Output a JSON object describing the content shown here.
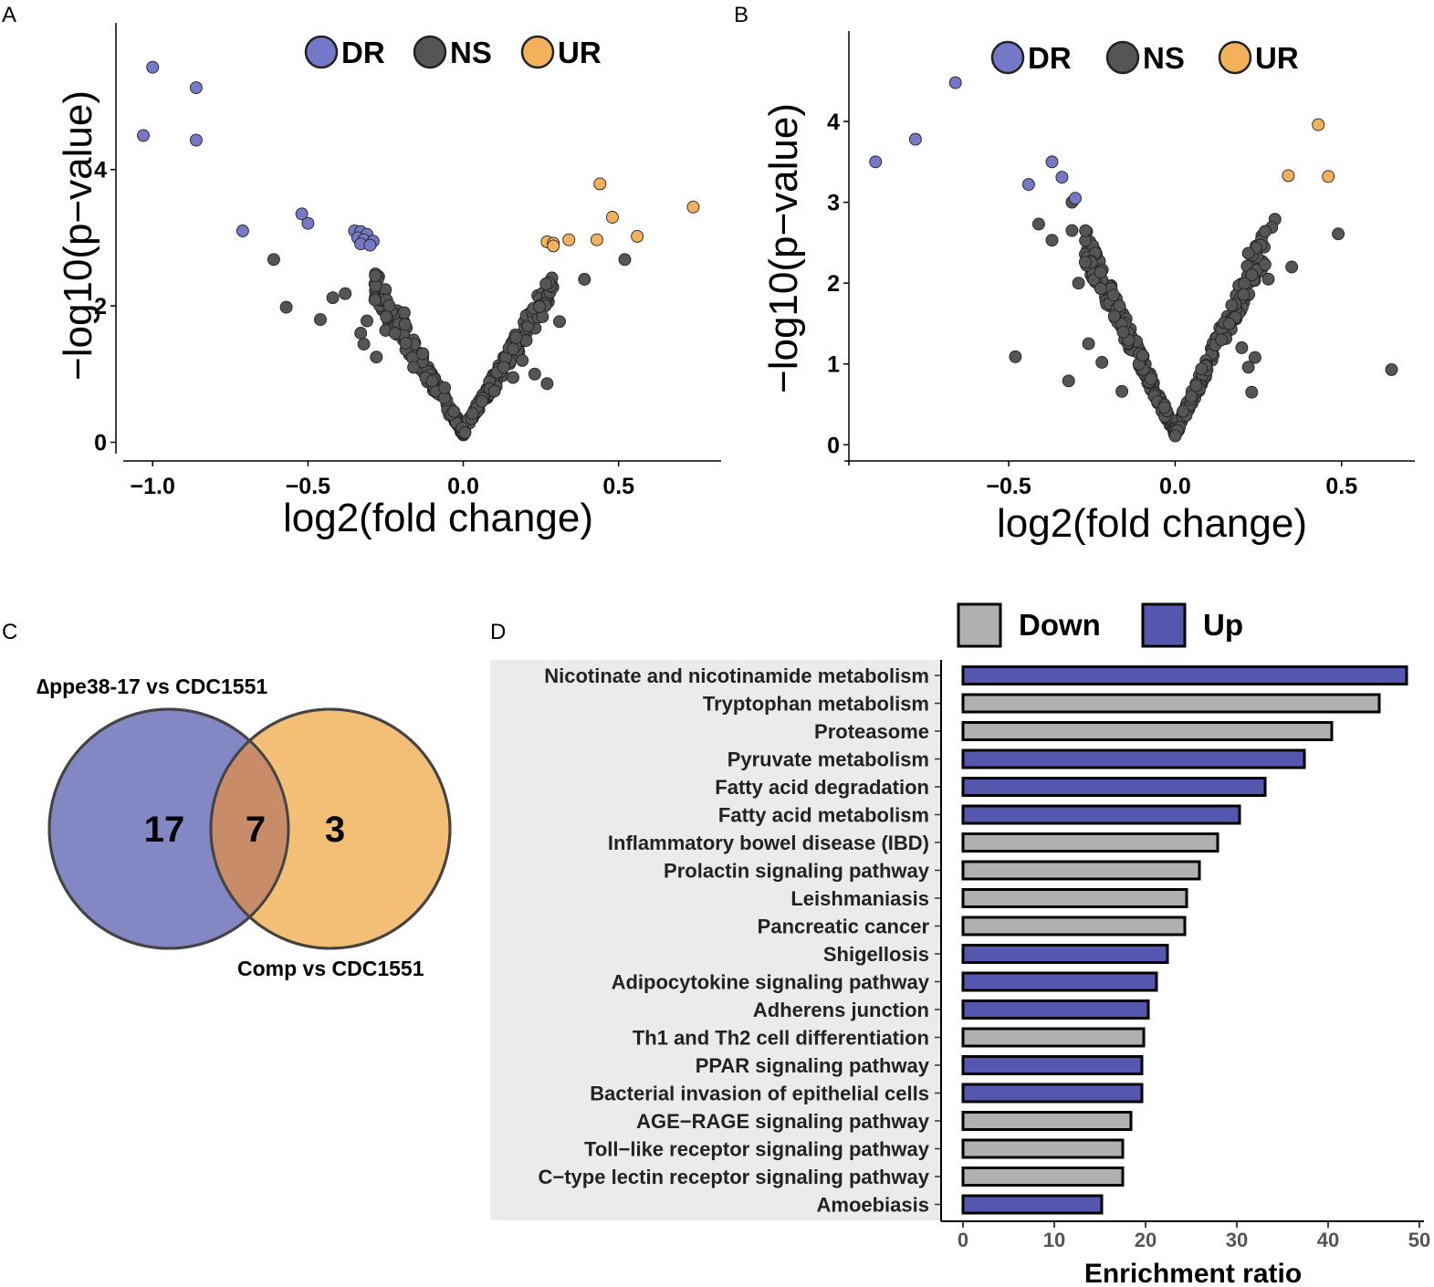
{
  "colors": {
    "dr": "#7478c6",
    "ns": "#555555",
    "ur": "#f4b15c",
    "down_bar": "#b0b0b0",
    "up_bar": "#5457ad",
    "venn_left": "#8387c4",
    "venn_right": "#f3bd72",
    "venn_overlap": "#c98c68",
    "label_bg": "#ebebeb"
  },
  "chart_data": [
    {
      "panel": "A",
      "type": "scatter",
      "xlabel": "log2(fold change)",
      "ylabel": "−log10(p−value)",
      "xlim": [
        -1.08,
        0.83
      ],
      "ylim": [
        -0.1,
        5.75
      ],
      "xticks": [
        -1.0,
        -0.5,
        0.0,
        0.5
      ],
      "xtick_labels": [
        "−1.0",
        "−0.5",
        "0.0",
        "0.5"
      ],
      "yticks": [
        0,
        2,
        4
      ],
      "ytick_labels": [
        "0",
        "2",
        "4"
      ],
      "legend": [
        {
          "key": "DR",
          "label": "DR"
        },
        {
          "key": "NS",
          "label": "NS"
        },
        {
          "key": "UR",
          "label": "UR"
        }
      ],
      "series": [
        {
          "key": "DR",
          "points": [
            [
              -1.0,
              5.5
            ],
            [
              -0.86,
              5.2
            ],
            [
              -1.03,
              4.5
            ],
            [
              -0.86,
              4.43
            ],
            [
              -0.71,
              3.1
            ],
            [
              -0.52,
              3.35
            ],
            [
              -0.5,
              3.21
            ],
            [
              -0.35,
              3.1
            ],
            [
              -0.33,
              3.09
            ],
            [
              -0.31,
              3.05
            ],
            [
              -0.34,
              3.0
            ],
            [
              -0.32,
              2.97
            ],
            [
              -0.29,
              2.95
            ],
            [
              -0.33,
              2.91
            ],
            [
              -0.3,
              2.89
            ]
          ]
        },
        {
          "key": "UR",
          "points": [
            [
              0.44,
              3.79
            ],
            [
              0.74,
              3.45
            ],
            [
              0.48,
              3.3
            ],
            [
              0.56,
              3.02
            ],
            [
              0.43,
              2.97
            ],
            [
              0.34,
              2.97
            ],
            [
              0.27,
              2.94
            ],
            [
              0.29,
              2.92
            ],
            [
              0.29,
              2.88
            ]
          ]
        },
        {
          "key": "NS",
          "points": [
            [
              -0.61,
              2.68
            ],
            [
              -0.57,
              1.98
            ],
            [
              -0.46,
              1.8
            ],
            [
              -0.42,
              2.12
            ],
            [
              -0.38,
              2.18
            ],
            [
              -0.33,
              1.6
            ],
            [
              -0.32,
              1.44
            ],
            [
              -0.31,
              1.78
            ],
            [
              -0.28,
              1.25
            ],
            [
              -0.25,
              1.64
            ],
            [
              -0.22,
              1.6
            ],
            [
              -0.19,
              1.9
            ],
            [
              -0.16,
              1.1
            ],
            [
              -0.13,
              1.3
            ],
            [
              -0.1,
              0.9
            ],
            [
              -0.06,
              0.8
            ],
            [
              -0.03,
              0.45
            ],
            [
              0.52,
              2.68
            ],
            [
              0.39,
              2.39
            ],
            [
              0.31,
              1.77
            ],
            [
              0.27,
              0.86
            ],
            [
              0.23,
              1.0
            ],
            [
              0.19,
              1.2
            ],
            [
              0.16,
              0.95
            ],
            [
              0.13,
              1.1
            ],
            [
              0.1,
              0.75
            ],
            [
              0.06,
              0.6
            ],
            [
              0.03,
              0.42
            ]
          ]
        },
        {
          "key": "NS_generated",
          "points": []
        }
      ]
    },
    {
      "panel": "B",
      "type": "scatter",
      "xlabel": "log2(fold change)",
      "ylabel": "−log10(p−value)",
      "xlim": [
        -0.98,
        0.72
      ],
      "ylim": [
        -0.2,
        4.78
      ],
      "xticks": [
        -0.5,
        0.0,
        0.5
      ],
      "xtick_labels": [
        "−0.5",
        "0.0",
        "0.5"
      ],
      "yticks": [
        0,
        1,
        2,
        3,
        4
      ],
      "ytick_labels": [
        "0",
        "1",
        "2",
        "3",
        "4"
      ],
      "legend": [
        {
          "key": "DR",
          "label": "DR"
        },
        {
          "key": "NS",
          "label": "NS"
        },
        {
          "key": "UR",
          "label": "UR"
        }
      ],
      "series": [
        {
          "key": "DR",
          "points": [
            [
              -0.66,
              4.48
            ],
            [
              -0.78,
              3.78
            ],
            [
              -0.9,
              3.5
            ],
            [
              -0.37,
              3.5
            ],
            [
              -0.44,
              3.22
            ],
            [
              -0.34,
              3.31
            ],
            [
              -0.3,
              3.05
            ]
          ]
        },
        {
          "key": "UR",
          "points": [
            [
              0.43,
              3.96
            ],
            [
              0.34,
              3.33
            ],
            [
              0.46,
              3.32
            ]
          ]
        },
        {
          "key": "NS",
          "points": [
            [
              -0.41,
              2.73
            ],
            [
              -0.37,
              2.53
            ],
            [
              -0.48,
              1.09
            ],
            [
              -0.32,
              0.79
            ],
            [
              -0.31,
              2.65
            ],
            [
              -0.31,
              3.0
            ],
            [
              -0.27,
              2.26
            ],
            [
              -0.29,
              2.0
            ],
            [
              -0.26,
              1.25
            ],
            [
              -0.22,
              1.02
            ],
            [
              -0.16,
              0.66
            ],
            [
              0.3,
              2.79
            ],
            [
              0.29,
              2.69
            ],
            [
              0.27,
              2.64
            ],
            [
              0.22,
              2.37
            ],
            [
              0.27,
              2.23
            ],
            [
              0.35,
              2.2
            ],
            [
              0.28,
              2.05
            ],
            [
              0.49,
              2.61
            ],
            [
              0.65,
              0.93
            ],
            [
              0.23,
              0.65
            ],
            [
              0.22,
              0.96
            ],
            [
              0.24,
              1.08
            ],
            [
              0.2,
              1.2
            ]
          ]
        },
        {
          "key": "NS_generated",
          "points": []
        }
      ]
    },
    {
      "panel": "C",
      "type": "venn",
      "sets": [
        {
          "label": "∆ppe38-17 vs CDC1551",
          "only": "17"
        },
        {
          "label": "Comp vs CDC1551",
          "only": "3"
        }
      ],
      "intersection": "7"
    },
    {
      "panel": "D",
      "type": "bar",
      "orientation": "horizontal",
      "xlabel": "Enrichment ratio",
      "xlim": [
        0,
        50
      ],
      "xticks": [
        0,
        10,
        20,
        30,
        40,
        50
      ],
      "xtick_labels": [
        "0",
        "10",
        "20",
        "30",
        "40",
        "50"
      ],
      "legend": [
        {
          "key": "Down",
          "label": "Down"
        },
        {
          "key": "Up",
          "label": "Up"
        }
      ],
      "bars": [
        {
          "label": "Nicotinate and nicotinamide metabolism",
          "value": 48.6,
          "group": "Up"
        },
        {
          "label": "Tryptophan metabolism",
          "value": 45.6,
          "group": "Down"
        },
        {
          "label": "Proteasome",
          "value": 40.4,
          "group": "Down"
        },
        {
          "label": "Pyruvate metabolism",
          "value": 37.4,
          "group": "Up"
        },
        {
          "label": "Fatty acid degradation",
          "value": 33.1,
          "group": "Up"
        },
        {
          "label": "Fatty acid metabolism",
          "value": 30.3,
          "group": "Up"
        },
        {
          "label": "Inflammatory bowel disease (IBD)",
          "value": 27.9,
          "group": "Down"
        },
        {
          "label": "Prolactin signaling pathway",
          "value": 25.9,
          "group": "Down"
        },
        {
          "label": "Leishmaniasis",
          "value": 24.5,
          "group": "Down"
        },
        {
          "label": "Pancreatic cancer",
          "value": 24.3,
          "group": "Down"
        },
        {
          "label": "Shigellosis",
          "value": 22.4,
          "group": "Up"
        },
        {
          "label": "Adipocytokine signaling pathway",
          "value": 21.2,
          "group": "Up"
        },
        {
          "label": "Adherens junction",
          "value": 20.3,
          "group": "Up"
        },
        {
          "label": "Th1 and Th2 cell differentiation",
          "value": 19.8,
          "group": "Down"
        },
        {
          "label": "PPAR signaling pathway",
          "value": 19.6,
          "group": "Up"
        },
        {
          "label": "Bacterial invasion of epithelial cells",
          "value": 19.6,
          "group": "Up"
        },
        {
          "label": "AGE−RAGE signaling pathway",
          "value": 18.4,
          "group": "Down"
        },
        {
          "label": "Toll−like receptor signaling pathway",
          "value": 17.5,
          "group": "Down"
        },
        {
          "label": "C−type lectin receptor signaling pathway",
          "value": 17.5,
          "group": "Down"
        },
        {
          "label": "Amoebiasis",
          "value": 15.2,
          "group": "Up"
        }
      ]
    }
  ],
  "panel_letters": [
    "A",
    "B",
    "C",
    "D"
  ]
}
